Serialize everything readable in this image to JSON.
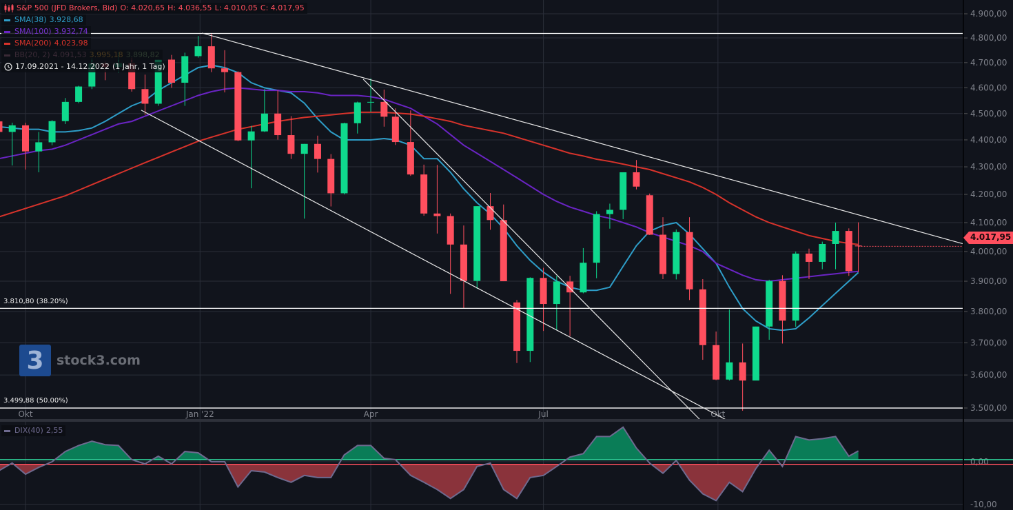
{
  "header": {
    "instrument": "S&P 500 (JFD Brokers, Bid)",
    "open": "O: 4.020,65",
    "high": "H: 4.036,55",
    "low": "L: 4.010,05",
    "close": "C: 4.017,95",
    "date_range": "17.09.2021 - 14.12.2022",
    "interval": "(1 Jahr, 1 Tag)",
    "color": "#ff4f5e"
  },
  "indicators": {
    "sma38": {
      "label": "SMA(38)",
      "value": "3.928,68",
      "color": "#2e9ec9"
    },
    "sma100": {
      "label": "SMA(100)",
      "value": "3.932,74",
      "color": "#6a24c4"
    },
    "sma200": {
      "label": "SMA(200)",
      "value": "4.023,98",
      "color": "#d8332b"
    },
    "bb": {
      "label": "BB(20, 2)",
      "upper": "4.091,53",
      "middle": "3.995,18",
      "lower": "3.898,82",
      "color": "#3a2a36"
    },
    "dix": {
      "label": "DIX(40)",
      "value": "2,55",
      "color": "#6e6a8f"
    }
  },
  "watermark": {
    "text": "stock3.com",
    "logo_glyph": "3"
  },
  "last_price_tag": "4.017,95",
  "chart_data": [
    {
      "type": "candlestick",
      "scale": "log",
      "ylim": [
        3500,
        4900
      ],
      "grid": true,
      "colors": {
        "up": "#0fd98d",
        "down": "#ff4f5e",
        "background": "#11141c",
        "grid": "#2a2e39"
      },
      "y_ticks": [
        {
          "value": 4900,
          "label": "4.900,00"
        },
        {
          "value": 4800,
          "label": "4.800,00"
        },
        {
          "value": 4700,
          "label": "4.700,00"
        },
        {
          "value": 4600,
          "label": "4.600,00"
        },
        {
          "value": 4500,
          "label": "4.500,00"
        },
        {
          "value": 4400,
          "label": "4.400,00"
        },
        {
          "value": 4300,
          "label": "4.300,00"
        },
        {
          "value": 4200,
          "label": "4.200,00"
        },
        {
          "value": 4100,
          "label": "4.100,00"
        },
        {
          "value": 4000,
          "label": "4.000,00"
        },
        {
          "value": 3900,
          "label": "3.900,00"
        },
        {
          "value": 3800,
          "label": "3.800,00"
        },
        {
          "value": 3700,
          "label": "3.700,00"
        },
        {
          "value": 3600,
          "label": "3.600,00"
        },
        {
          "value": 3500,
          "label": "3.500,00"
        }
      ],
      "x_ticks": [
        {
          "date": "2021-10-01",
          "label": "Okt"
        },
        {
          "date": "2022-01-01",
          "label": "Jan '22"
        },
        {
          "date": "2022-04-01",
          "label": "Apr"
        },
        {
          "date": "2022-07-01",
          "label": "Jul"
        },
        {
          "date": "2022-10-01",
          "label": "Okt"
        }
      ],
      "candles_columns": [
        "date",
        "open",
        "high",
        "low",
        "close"
      ],
      "candles": [
        [
          "2021-09-17",
          4470,
          4480,
          4420,
          4430
        ],
        [
          "2021-09-24",
          4430,
          4465,
          4305,
          4455
        ],
        [
          "2021-10-01",
          4455,
          4465,
          4290,
          4357
        ],
        [
          "2021-10-08",
          4357,
          4430,
          4280,
          4391
        ],
        [
          "2021-10-15",
          4391,
          4475,
          4380,
          4471
        ],
        [
          "2021-10-22",
          4471,
          4560,
          4460,
          4545
        ],
        [
          "2021-10-29",
          4545,
          4608,
          4540,
          4605
        ],
        [
          "2021-11-05",
          4605,
          4718,
          4595,
          4697
        ],
        [
          "2021-11-12",
          4697,
          4705,
          4630,
          4683
        ],
        [
          "2021-11-19",
          4683,
          4743,
          4660,
          4698
        ],
        [
          "2021-11-26",
          4698,
          4720,
          4585,
          4595
        ],
        [
          "2021-12-03",
          4595,
          4652,
          4495,
          4538
        ],
        [
          "2021-12-10",
          4538,
          4713,
          4530,
          4712
        ],
        [
          "2021-12-17",
          4712,
          4731,
          4600,
          4620
        ],
        [
          "2021-12-24",
          4620,
          4740,
          4530,
          4726
        ],
        [
          "2021-12-31",
          4726,
          4808,
          4720,
          4766
        ],
        [
          "2022-01-07",
          4766,
          4818,
          4662,
          4677
        ],
        [
          "2022-01-14",
          4677,
          4750,
          4582,
          4662
        ],
        [
          "2022-01-21",
          4662,
          4665,
          4395,
          4398
        ],
        [
          "2022-01-28",
          4398,
          4453,
          4222,
          4432
        ],
        [
          "2022-02-04",
          4432,
          4595,
          4430,
          4500
        ],
        [
          "2022-02-11",
          4500,
          4590,
          4401,
          4418
        ],
        [
          "2022-02-18",
          4418,
          4490,
          4329,
          4348
        ],
        [
          "2022-02-25",
          4348,
          4385,
          4114,
          4385
        ],
        [
          "2022-03-04",
          4385,
          4416,
          4279,
          4329
        ],
        [
          "2022-03-11",
          4329,
          4347,
          4157,
          4204
        ],
        [
          "2022-03-18",
          4204,
          4465,
          4200,
          4463
        ],
        [
          "2022-03-25",
          4463,
          4546,
          4424,
          4543
        ],
        [
          "2022-04-01",
          4543,
          4637,
          4506,
          4545
        ],
        [
          "2022-04-08",
          4545,
          4593,
          4450,
          4488
        ],
        [
          "2022-04-14",
          4488,
          4520,
          4381,
          4392
        ],
        [
          "2022-04-22",
          4392,
          4512,
          4267,
          4272
        ],
        [
          "2022-04-29",
          4272,
          4308,
          4124,
          4132
        ],
        [
          "2022-05-06",
          4132,
          4307,
          4062,
          4123
        ],
        [
          "2022-05-13",
          4123,
          4132,
          3858,
          4024
        ],
        [
          "2022-05-20",
          4024,
          4090,
          3810,
          3901
        ],
        [
          "2022-05-27",
          3901,
          4158,
          3875,
          4158
        ],
        [
          "2022-06-03",
          4158,
          4205,
          4075,
          4109
        ],
        [
          "2022-06-10",
          4109,
          4164,
          3900,
          3900
        ],
        [
          "2022-06-17",
          3830,
          3838,
          3637,
          3675
        ],
        [
          "2022-06-24",
          3675,
          3913,
          3640,
          3911
        ],
        [
          "2022-07-01",
          3911,
          3945,
          3738,
          3825
        ],
        [
          "2022-07-08",
          3825,
          3918,
          3742,
          3899
        ],
        [
          "2022-07-15",
          3899,
          3918,
          3721,
          3863
        ],
        [
          "2022-07-22",
          3863,
          4012,
          3860,
          3962
        ],
        [
          "2022-07-29",
          3962,
          4140,
          3910,
          4130
        ],
        [
          "2022-08-05",
          4130,
          4167,
          4079,
          4145
        ],
        [
          "2022-08-12",
          4145,
          4280,
          4112,
          4280
        ],
        [
          "2022-08-19",
          4280,
          4325,
          4218,
          4228
        ],
        [
          "2022-08-26",
          4197,
          4203,
          4057,
          4058
        ],
        [
          "2022-09-02",
          4058,
          4119,
          3907,
          3924
        ],
        [
          "2022-09-09",
          3924,
          4076,
          3906,
          4067
        ],
        [
          "2022-09-16",
          4067,
          4119,
          3838,
          3873
        ],
        [
          "2022-09-23",
          3873,
          3907,
          3647,
          3693
        ],
        [
          "2022-09-30",
          3693,
          3736,
          3584,
          3586
        ],
        [
          "2022-10-07",
          3586,
          3807,
          3583,
          3639
        ],
        [
          "2022-10-14",
          3639,
          3698,
          3492,
          3583
        ],
        [
          "2022-10-21",
          3583,
          3752,
          3586,
          3752
        ],
        [
          "2022-10-28",
          3752,
          3905,
          3710,
          3901
        ],
        [
          "2022-11-04",
          3901,
          3920,
          3698,
          3771
        ],
        [
          "2022-11-11",
          3771,
          4000,
          3751,
          3993
        ],
        [
          "2022-11-18",
          3993,
          4010,
          3907,
          3965
        ],
        [
          "2022-11-25",
          3965,
          4034,
          3940,
          4026
        ],
        [
          "2022-12-02",
          4026,
          4100,
          3940,
          4071
        ],
        [
          "2022-12-09",
          4071,
          4080,
          3918,
          3934
        ],
        [
          "2022-12-14",
          4020.65,
          4101,
          3930,
          4017.95
        ]
      ],
      "series": [
        {
          "name": "SMA(38)",
          "color": "#2e9ec9",
          "values": [
            4450,
            4445,
            4440,
            4440,
            4430,
            4430,
            4435,
            4445,
            4470,
            4500,
            4530,
            4550,
            4590,
            4620,
            4650,
            4680,
            4690,
            4680,
            4660,
            4620,
            4600,
            4590,
            4580,
            4540,
            4480,
            4430,
            4400,
            4400,
            4400,
            4405,
            4400,
            4380,
            4330,
            4330,
            4280,
            4220,
            4170,
            4130,
            4080,
            4020,
            3970,
            3930,
            3900,
            3880,
            3870,
            3870,
            3880,
            3950,
            4020,
            4070,
            4090,
            4100,
            4060,
            4010,
            3960,
            3880,
            3810,
            3770,
            3745,
            3740,
            3745,
            3780,
            3820,
            3860,
            3900,
            3929
          ]
        },
        {
          "name": "SMA(100)",
          "color": "#6a24c4",
          "values": [
            4330,
            4340,
            4350,
            4360,
            4365,
            4380,
            4400,
            4420,
            4440,
            4460,
            4470,
            4490,
            4510,
            4530,
            4550,
            4570,
            4585,
            4595,
            4600,
            4595,
            4590,
            4590,
            4585,
            4585,
            4580,
            4570,
            4570,
            4570,
            4565,
            4555,
            4540,
            4520,
            4490,
            4460,
            4420,
            4380,
            4350,
            4320,
            4290,
            4260,
            4230,
            4200,
            4175,
            4155,
            4140,
            4125,
            4115,
            4100,
            4085,
            4065,
            4050,
            4035,
            4020,
            4000,
            3960,
            3940,
            3920,
            3905,
            3900,
            3905,
            3910,
            3915,
            3920,
            3925,
            3930,
            3933
          ]
        },
        {
          "name": "SMA(200)",
          "color": "#d8332b",
          "values": [
            4120,
            4135,
            4150,
            4165,
            4180,
            4195,
            4215,
            4235,
            4255,
            4275,
            4295,
            4315,
            4335,
            4355,
            4375,
            4395,
            4410,
            4425,
            4440,
            4450,
            4460,
            4470,
            4478,
            4485,
            4490,
            4495,
            4500,
            4505,
            4505,
            4505,
            4502,
            4498,
            4490,
            4480,
            4470,
            4455,
            4445,
            4435,
            4425,
            4410,
            4395,
            4380,
            4365,
            4350,
            4340,
            4328,
            4320,
            4310,
            4300,
            4290,
            4275,
            4260,
            4245,
            4225,
            4200,
            4170,
            4145,
            4120,
            4100,
            4085,
            4070,
            4055,
            4045,
            4035,
            4028,
            4024
          ]
        }
      ],
      "horizontal_levels": [
        {
          "value": 4818.62,
          "label": ""
        },
        {
          "value": 3810.8,
          "label": "3.810,80 (38.20%)"
        },
        {
          "value": 3499.88,
          "label": "3.499,88 (50.00%)"
        }
      ],
      "trend_lines": [
        {
          "from": [
            "2022-01-02",
            4820
          ],
          "to": [
            "2023-02-07",
            4027
          ]
        },
        {
          "from": [
            "2021-12-01",
            4513
          ],
          "to": [
            "2022-10-08",
            3457
          ]
        },
        {
          "from": [
            "2022-03-28",
            4634
          ],
          "to": [
            "2022-09-23",
            3457
          ]
        }
      ]
    },
    {
      "type": "area",
      "name": "DIX(40)",
      "ylim": [
        -10,
        10
      ],
      "y_ticks": [
        {
          "value": 0,
          "label": "0,00"
        },
        {
          "value": -10,
          "label": "-10,00"
        }
      ],
      "upper_level": 0.5,
      "lower_level": -0.6,
      "colors": {
        "line": "#6e6a8f",
        "positive": "#0a7d57",
        "negative": "#8a333b",
        "upper_line": "#2fd39a",
        "lower_line": "#ff4f5e"
      },
      "dates_same_as_candles": true,
      "values": [
        -2.1,
        -0.3,
        -2.9,
        -1.3,
        0,
        2.4,
        3.8,
        4.8,
        4.0,
        3.8,
        0.5,
        -0.5,
        1.3,
        -0.5,
        2.4,
        2.1,
        0,
        0,
        -5.9,
        -2.1,
        -2.4,
        -3.7,
        -4.8,
        -3.2,
        -3.7,
        -3.7,
        1.6,
        3.8,
        3.8,
        0.8,
        0.5,
        -3.2,
        -4.8,
        -6.5,
        -8.6,
        -6.5,
        -1.1,
        -0.3,
        -6.5,
        -8.6,
        -3.7,
        -3.2,
        -1.1,
        1.1,
        1.9,
        5.9,
        5.9,
        8.1,
        3.2,
        -0.3,
        -2.7,
        0.3,
        -4.3,
        -7.5,
        -9.1,
        -4.8,
        -7.0,
        -1.6,
        2.7,
        -1.1,
        5.9,
        5.1,
        5.4,
        5.9,
        1.3,
        2.55
      ]
    }
  ]
}
